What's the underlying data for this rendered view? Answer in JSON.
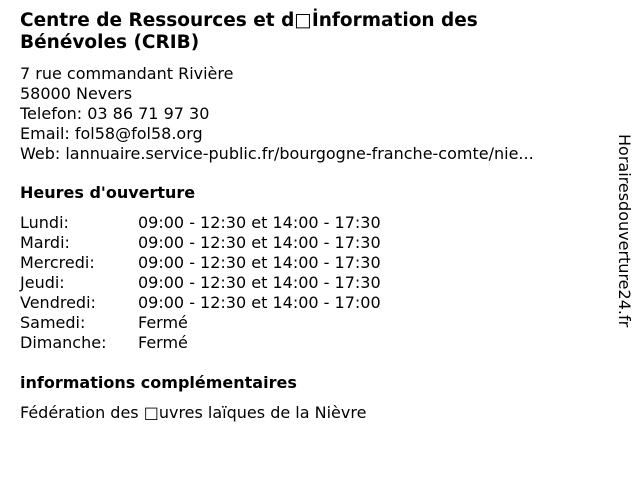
{
  "title": "Centre de Ressources et d□İnformation des Bénévoles (CRIB)",
  "address": {
    "street": "7 rue commandant Rivière",
    "city": "58000 Nevers",
    "phone": "Telefon: 03 86 71 97 30",
    "email": "Email: fol58@fol58.org",
    "web": "Web: lannuaire.service-public.fr/bourgogne-franche-comte/nie..."
  },
  "hours": {
    "heading": "Heures d'ouverture",
    "rows": [
      {
        "day": "Lundi:",
        "time": "09:00 - 12:30 et 14:00 - 17:30"
      },
      {
        "day": "Mardi:",
        "time": "09:00 - 12:30 et 14:00 - 17:30"
      },
      {
        "day": "Mercredi:",
        "time": "09:00 - 12:30 et 14:00 - 17:30"
      },
      {
        "day": "Jeudi:",
        "time": "09:00 - 12:30 et 14:00 - 17:30"
      },
      {
        "day": "Vendredi:",
        "time": "09:00 - 12:30 et 14:00 - 17:00"
      },
      {
        "day": "Samedi:",
        "time": "Fermé"
      },
      {
        "day": "Dimanche:",
        "time": "Fermé"
      }
    ]
  },
  "extra": {
    "heading": "informations complémentaires",
    "text": "Fédération des □uvres laïques de la Nièvre"
  },
  "watermark": "Horairesdouverture24.fr"
}
